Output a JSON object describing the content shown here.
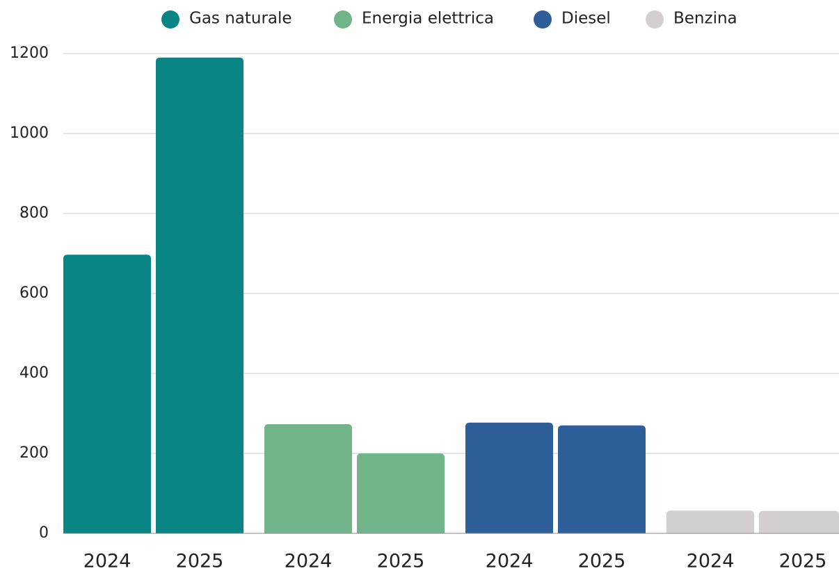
{
  "chart_data": {
    "type": "bar",
    "categories": [
      "2024",
      "2025"
    ],
    "series": [
      {
        "name": "Gas naturale",
        "color": "#0a8585",
        "values": [
          697,
          1190
        ]
      },
      {
        "name": "Energia elettrica",
        "color": "#72b48a",
        "values": [
          273,
          200
        ]
      },
      {
        "name": "Diesel",
        "color": "#2f5f98",
        "values": [
          277,
          270
        ]
      },
      {
        "name": "Benzina",
        "color": "#d3cfcf",
        "values": [
          57,
          56
        ]
      }
    ],
    "ylim": [
      0,
      1200
    ],
    "yticks": [
      0,
      200,
      400,
      600,
      800,
      1000,
      1200
    ],
    "grid": true,
    "legend": "top"
  }
}
